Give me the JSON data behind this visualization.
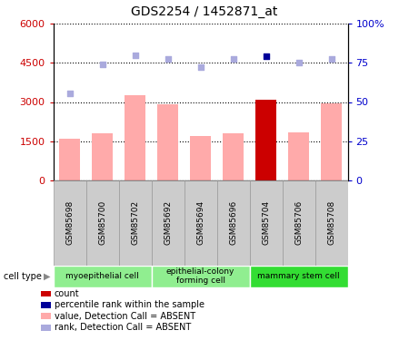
{
  "title": "GDS2254 / 1452871_at",
  "samples": [
    "GSM85698",
    "GSM85700",
    "GSM85702",
    "GSM85692",
    "GSM85694",
    "GSM85696",
    "GSM85704",
    "GSM85706",
    "GSM85708"
  ],
  "bar_values": [
    1600,
    1800,
    3250,
    2900,
    1700,
    1800,
    3100,
    1850,
    2950
  ],
  "bar_colors": [
    "#ffaaaa",
    "#ffaaaa",
    "#ffaaaa",
    "#ffaaaa",
    "#ffaaaa",
    "#ffaaaa",
    "#cc0000",
    "#ffaaaa",
    "#ffaaaa"
  ],
  "rank_values": [
    55.5,
    74.0,
    80.0,
    77.5,
    72.5,
    77.5,
    79.0,
    75.0,
    77.5
  ],
  "rank_colors": [
    "#aaaadd",
    "#aaaadd",
    "#aaaadd",
    "#aaaadd",
    "#aaaadd",
    "#aaaadd",
    "#000099",
    "#aaaadd",
    "#aaaadd"
  ],
  "ylim_left": [
    0,
    6000
  ],
  "ylim_right": [
    0,
    100
  ],
  "yticks_left": [
    0,
    1500,
    3000,
    4500,
    6000
  ],
  "ytick_labels_left": [
    "0",
    "1500",
    "3000",
    "4500",
    "6000"
  ],
  "yticks_right": [
    0,
    25,
    50,
    75,
    100
  ],
  "ytick_labels_right": [
    "0",
    "25",
    "50",
    "75",
    "100%"
  ],
  "cell_groups": [
    {
      "label": "myoepithelial cell",
      "start": 0,
      "end": 3,
      "color": "#90ee90"
    },
    {
      "label": "epithelial-colony\nforming cell",
      "start": 3,
      "end": 6,
      "color": "#90ee90"
    },
    {
      "label": "mammary stem cell",
      "start": 6,
      "end": 9,
      "color": "#33dd33"
    }
  ],
  "legend_items": [
    {
      "label": "count",
      "color": "#cc0000"
    },
    {
      "label": "percentile rank within the sample",
      "color": "#000099"
    },
    {
      "label": "value, Detection Call = ABSENT",
      "color": "#ffaaaa"
    },
    {
      "label": "rank, Detection Call = ABSENT",
      "color": "#aaaadd"
    }
  ],
  "cell_type_label": "cell type",
  "left_axis_color": "#cc0000",
  "right_axis_color": "#0000cc",
  "bg_color": "#ffffff",
  "plot_bg": "#ffffff",
  "tick_box_color": "#cccccc",
  "tick_box_edge": "#999999"
}
